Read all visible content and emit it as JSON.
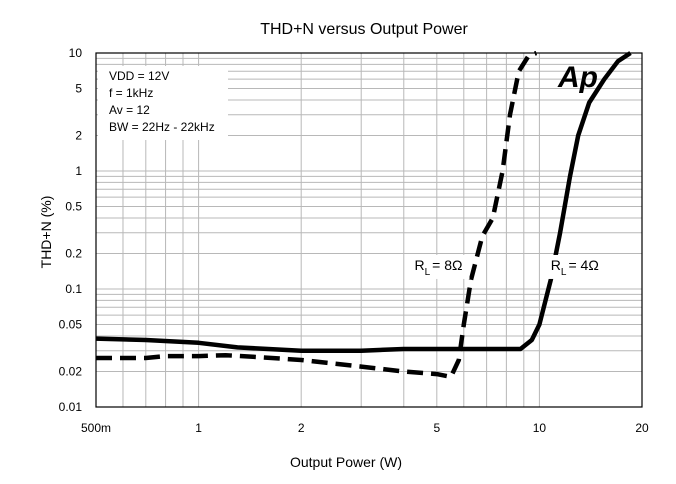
{
  "chart_data": {
    "type": "line",
    "title": "THD+N versus Output Power",
    "xlabel": "Output Power (W)",
    "ylabel": "THD+N (%)",
    "x_scale": "log",
    "y_scale": "log",
    "xlim": [
      0.5,
      20
    ],
    "ylim": [
      0.01,
      10
    ],
    "grid": true,
    "x_ticks": [
      {
        "value": 0.5,
        "label": "500m"
      },
      {
        "value": 1,
        "label": "1"
      },
      {
        "value": 2,
        "label": "2"
      },
      {
        "value": 5,
        "label": "5"
      },
      {
        "value": 10,
        "label": "10"
      },
      {
        "value": 20,
        "label": "20"
      }
    ],
    "y_ticks": [
      {
        "value": 10,
        "label": "10"
      },
      {
        "value": 5,
        "label": "5"
      },
      {
        "value": 2,
        "label": "2"
      },
      {
        "value": 1,
        "label": "1"
      },
      {
        "value": 0.5,
        "label": "0.5"
      },
      {
        "value": 0.2,
        "label": "0.2"
      },
      {
        "value": 0.1,
        "label": "0.1"
      },
      {
        "value": 0.05,
        "label": "0.05"
      },
      {
        "value": 0.02,
        "label": "0.02"
      },
      {
        "value": 0.01,
        "label": "0.01"
      }
    ],
    "conditions": [
      "VDD = 12V",
      "f = 1kHz",
      "Av = 12",
      "BW = 22Hz - 22kHz"
    ],
    "logo": "Ap",
    "series": [
      {
        "label_main": "R",
        "label_sub": "L",
        "label_rest": "= 8Ω",
        "style": "dashed",
        "label_at": [
          4.3,
          0.145
        ],
        "points": [
          [
            0.5,
            0.026
          ],
          [
            0.7,
            0.026
          ],
          [
            0.8,
            0.027
          ],
          [
            1.0,
            0.027
          ],
          [
            1.2,
            0.0275
          ],
          [
            1.5,
            0.0265
          ],
          [
            2.0,
            0.025
          ],
          [
            3.0,
            0.022
          ],
          [
            4.0,
            0.02
          ],
          [
            5.0,
            0.019
          ],
          [
            5.5,
            0.018
          ],
          [
            5.8,
            0.025
          ],
          [
            6.0,
            0.05
          ],
          [
            6.3,
            0.12
          ],
          [
            6.8,
            0.28
          ],
          [
            7.3,
            0.4
          ],
          [
            7.8,
            1.0
          ],
          [
            8.2,
            3.0
          ],
          [
            8.7,
            7.0
          ],
          [
            9.3,
            9.5
          ],
          [
            9.8,
            10.0
          ]
        ]
      },
      {
        "label_main": "R",
        "label_sub": "L",
        "label_rest": "= 4Ω",
        "style": "solid",
        "label_at": [
          10.8,
          0.145
        ],
        "points": [
          [
            0.5,
            0.038
          ],
          [
            0.7,
            0.037
          ],
          [
            1.0,
            0.035
          ],
          [
            1.3,
            0.032
          ],
          [
            1.6,
            0.031
          ],
          [
            2.0,
            0.03
          ],
          [
            3.0,
            0.03
          ],
          [
            4.0,
            0.031
          ],
          [
            5.0,
            0.031
          ],
          [
            6.0,
            0.031
          ],
          [
            7.0,
            0.031
          ],
          [
            8.0,
            0.031
          ],
          [
            8.8,
            0.031
          ],
          [
            9.5,
            0.037
          ],
          [
            10.0,
            0.05
          ],
          [
            10.8,
            0.12
          ],
          [
            11.5,
            0.3
          ],
          [
            12.3,
            0.9
          ],
          [
            13.0,
            2.0
          ],
          [
            14.0,
            3.8
          ],
          [
            15.5,
            6.0
          ],
          [
            17.0,
            8.5
          ],
          [
            18.5,
            10.0
          ]
        ]
      }
    ]
  }
}
